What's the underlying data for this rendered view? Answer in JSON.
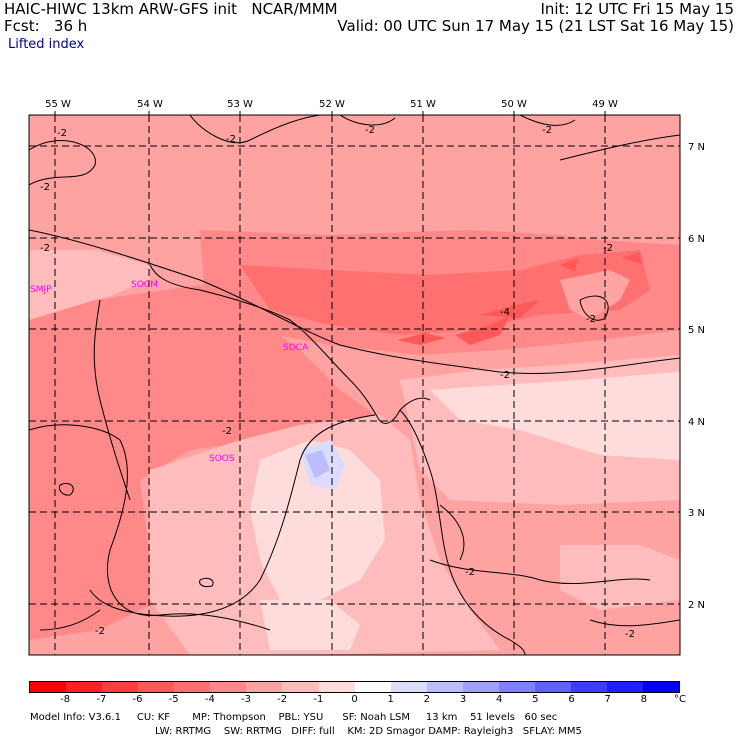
{
  "header": {
    "title": "HAIC-HIWC 13km ARW-GFS init   NCAR/MMM",
    "init": "Init: 12 UTC Fri 15 May 15",
    "fcst": "Fcst:   36 h",
    "valid": "Valid: 00 UTC Sun 17 May 15 (21 LST Sat 16 May 15)",
    "field": "Lifted index"
  },
  "map": {
    "lon_labels": [
      "55 W",
      "54 W",
      "53 W",
      "52 W",
      "51 W",
      "50 W",
      "49 W"
    ],
    "lat_labels": [
      "7 N",
      "6 N",
      "5 N",
      "4 N",
      "3 N",
      "2 N"
    ],
    "stations": [
      "SMJP",
      "SOCM",
      "SOCA",
      "SOOS"
    ],
    "contour_labels": [
      "-2",
      "-2",
      "-2",
      "-2",
      "-2",
      "-2",
      "-2",
      "-4",
      "-2",
      "-2",
      "-2",
      "-2",
      "-2",
      "-2"
    ]
  },
  "colorbar": {
    "labels": [
      "-8",
      "-7",
      "-6",
      "-5",
      "-4",
      "-3",
      "-2",
      "-1",
      "0",
      "1",
      "2",
      "3",
      "4",
      "5",
      "6",
      "7",
      "8"
    ],
    "unit": "°C",
    "colors": [
      "#ff0000",
      "#ff2020",
      "#ff3d3d",
      "#ff5858",
      "#ff7070",
      "#ff8888",
      "#ffa2a2",
      "#ffbcbc",
      "#ffdcdc",
      "#ffffff",
      "#dcdcff",
      "#bcbcff",
      "#a0a0ff",
      "#8080ff",
      "#6060ff",
      "#3d3dff",
      "#1e1eff",
      "#0000ff"
    ]
  },
  "footer": {
    "line1": "Model Info: V3.6.1     CU: KF       MP: Thompson    PBL: YSU      SF: Noah LSM     13 km    51 levels   60 sec",
    "line2": "LW: RRTMG    SW: RRTMG   DIFF: full    KM: 2D Smagor DAMP: Rayleigh3   SFLAY: MM5"
  }
}
